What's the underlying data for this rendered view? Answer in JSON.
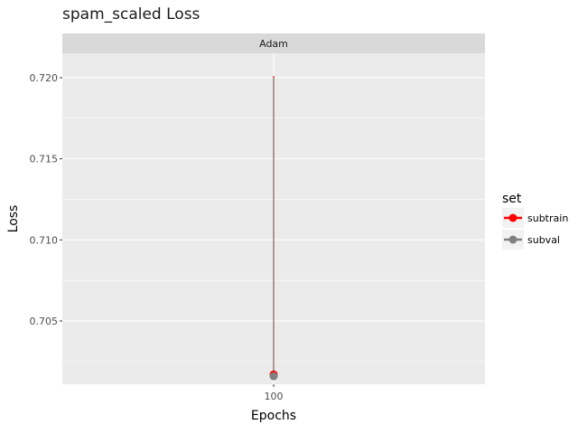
{
  "chart_data": {
    "type": "line",
    "title": "spam_scaled Loss",
    "facet": "Adam",
    "xlabel": "Epochs",
    "ylabel": "Loss",
    "x_ticks": [
      100
    ],
    "y_ticks": [
      0.705,
      0.71,
      0.715,
      0.72
    ],
    "ylim": [
      0.7011,
      0.7215
    ],
    "legend": {
      "title": "set",
      "placement": "right"
    },
    "series": [
      {
        "name": "subtrain",
        "color": "#ff0000",
        "lines": [
          {
            "x": 100,
            "y_from": 0.7017,
            "y_to": 0.7201
          }
        ],
        "points": [
          {
            "x": 100,
            "y": 0.7017
          }
        ]
      },
      {
        "name": "subval",
        "color": "#808080",
        "lines": [
          {
            "x": 100,
            "y_from": 0.7016,
            "y_to": 0.72
          }
        ],
        "points": [
          {
            "x": 100,
            "y": 0.7016
          }
        ]
      }
    ]
  }
}
